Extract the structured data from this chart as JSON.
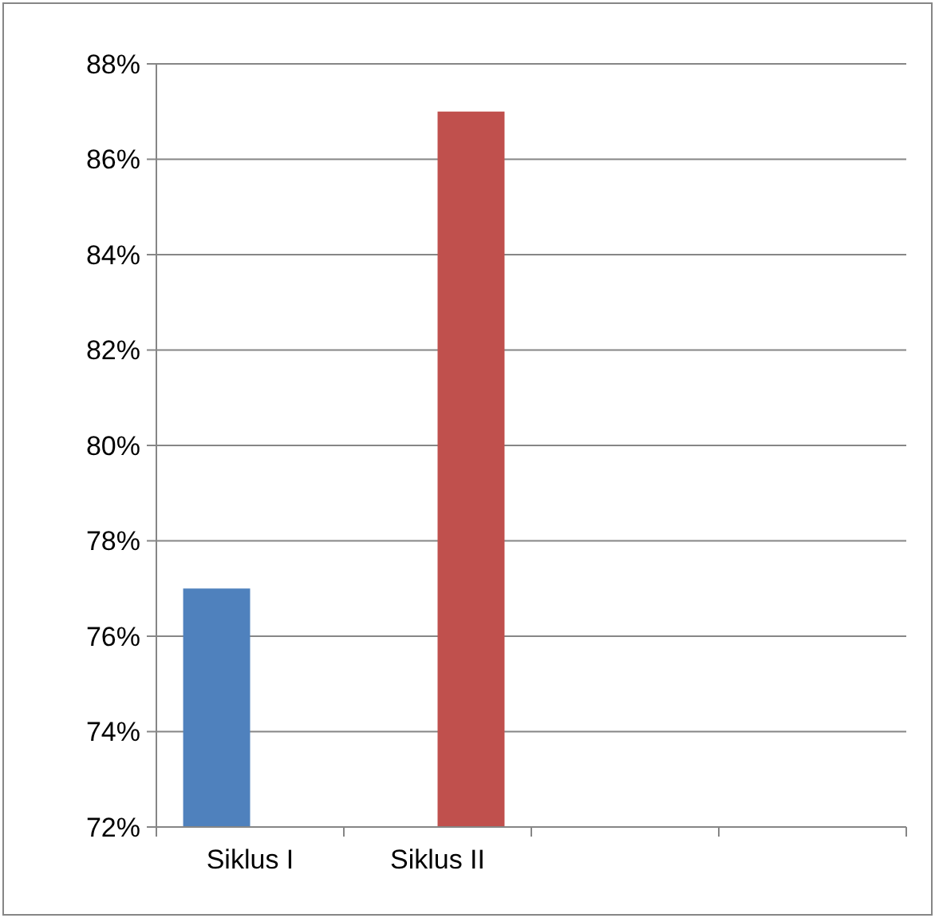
{
  "chart_data": {
    "type": "bar",
    "categories": [
      "Siklus I",
      "Siklus II",
      null,
      null
    ],
    "series": [
      {
        "color": "#4f81bd",
        "values": [
          77,
          null,
          null,
          null
        ]
      },
      {
        "color": "#c0504d",
        "values": [
          null,
          87,
          null,
          null
        ]
      }
    ],
    "ylim": [
      72,
      88
    ],
    "yticks": [
      {
        "value": 72,
        "label": "72%"
      },
      {
        "value": 74,
        "label": "74%"
      },
      {
        "value": 76,
        "label": "76%"
      },
      {
        "value": 78,
        "label": "78%"
      },
      {
        "value": 80,
        "label": "80%"
      },
      {
        "value": 82,
        "label": "82%"
      },
      {
        "value": 84,
        "label": "84%"
      },
      {
        "value": 86,
        "label": "86%"
      },
      {
        "value": 88,
        "label": "88%"
      }
    ],
    "grid": "y"
  }
}
